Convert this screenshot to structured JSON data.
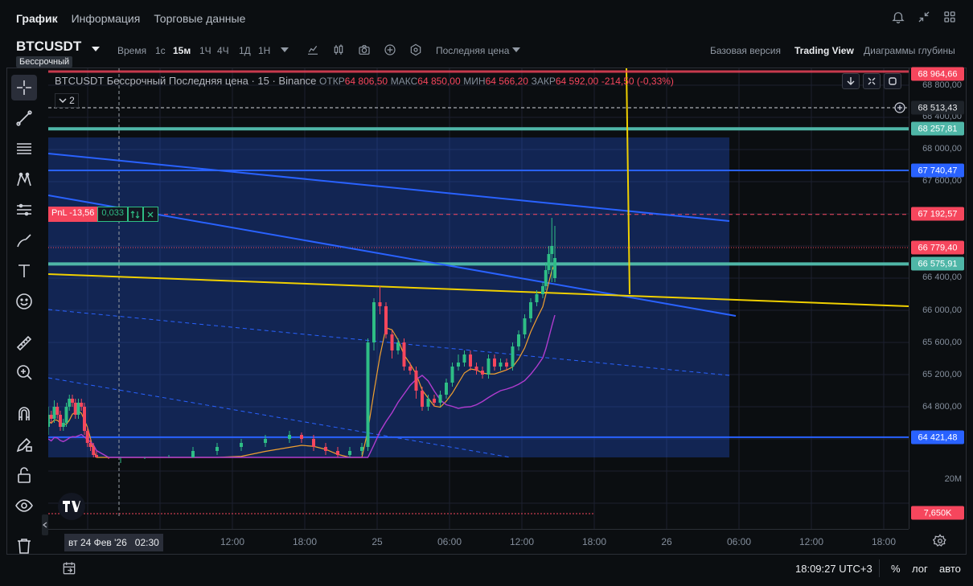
{
  "tabs": [
    {
      "label": "График",
      "active": true
    },
    {
      "label": "Информация",
      "active": false
    },
    {
      "label": "Торговые данные",
      "active": false
    }
  ],
  "top_icons": [
    "bell-icon",
    "collapse-icon",
    "grid-layout-icon"
  ],
  "symbol": {
    "name": "BTCUSDT",
    "subtitle": "Бессрочный"
  },
  "toolbar": {
    "time_label": "Время",
    "intervals": [
      {
        "label": "1с",
        "active": false
      },
      {
        "label": "15м",
        "active": true
      },
      {
        "label": "1Ч",
        "active": false
      },
      {
        "label": "4Ч",
        "active": false
      },
      {
        "label": "1Д",
        "active": false
      },
      {
        "label": "1Н",
        "active": false
      }
    ],
    "price_source": "Последняя цена",
    "modes": [
      {
        "label": "Базовая версия",
        "active": false
      },
      {
        "label": "Trading View",
        "active": true
      },
      {
        "label": "Диаграммы глубины",
        "active": false
      }
    ]
  },
  "legend": {
    "title": "BTCUSDT Бессрочный Последняя цена · 15 · Binance",
    "open_label": "ОТКР",
    "open": "64 806,50",
    "high_label": "МАКС",
    "high": "64 850,00",
    "low_label": "МИН",
    "low": "64 566,20",
    "close_label": "ЗАКР",
    "close": "64 592,00",
    "change": "-214,50 (-0,33%)",
    "collapse_count": "2"
  },
  "position": {
    "pnl": "PnL -13,56",
    "qty": "0,033"
  },
  "price_axis": {
    "ticks": [
      "68 800,00",
      "68 400,00",
      "68 000,00",
      "67 600,00",
      "66 400,00",
      "66 000,00",
      "65 600,00",
      "65 200,00",
      "64 800,00",
      "20M"
    ],
    "labels": [
      {
        "text": "68 964,66",
        "color": "#f6465d"
      },
      {
        "text": "68 513,43",
        "color": "#1e2329"
      },
      {
        "text": "68 257,81",
        "color": "#4fb6a7"
      },
      {
        "text": "67 740,47",
        "color": "#2962ff"
      },
      {
        "text": "67 192,57",
        "color": "#f6465d"
      },
      {
        "text": "66 779,40",
        "color": "#f6465d"
      },
      {
        "text": "66 575,91",
        "color": "#4fb6a7"
      },
      {
        "text": "64 421,48",
        "color": "#2962ff"
      },
      {
        "text": "7,650K",
        "color": "#f6465d"
      }
    ]
  },
  "time_axis": {
    "cursor_date": "вт 24 Фев '26",
    "cursor_time": "02:30",
    "ticks": [
      "12:00",
      "18:00",
      "25",
      "06:00",
      "12:00",
      "18:00",
      "26",
      "06:00",
      "12:00",
      "18:00"
    ]
  },
  "bottom": {
    "clock": "18:09:27 UTC+3",
    "percent": "%",
    "log": "лог",
    "auto": "авто"
  },
  "colors": {
    "bull": "#2ebd85",
    "bear": "#f6465d",
    "accent_blue": "#2962ff",
    "teal": "#4fb6a7",
    "yellow": "#f0d000",
    "purple": "#b03ccf"
  },
  "chart_data": {
    "type": "candlestick",
    "symbol": "BTCUSDT",
    "interval": "15",
    "ylim": [
      63800,
      69000
    ],
    "x": [
      "02-24 00:00",
      "02-24 00:15",
      "02-24 00:30",
      "02-24 00:45",
      "02-24 01:00",
      "02-24 01:15",
      "02-24 01:30",
      "02-24 01:45",
      "02-24 02:00",
      "02-24 02:15",
      "02-24 02:30",
      "02-24 02:45",
      "02-24 03:00",
      "02-24 03:15",
      "02-24 03:30",
      "02-24 03:45",
      "02-24 04:00",
      "02-24 05:00",
      "02-24 06:00",
      "02-24 08:00",
      "02-24 10:00",
      "02-24 12:00",
      "02-24 14:00",
      "02-24 16:00",
      "02-24 18:00",
      "02-24 20:00",
      "02-24 21:00",
      "02-24 22:00",
      "02-24 23:00",
      "02-25 00:00",
      "02-25 01:00",
      "02-25 02:00",
      "02-25 02:30",
      "02-25 03:00",
      "02-25 03:30",
      "02-25 04:00",
      "02-25 04:30",
      "02-25 05:00",
      "02-25 05:30",
      "02-25 06:00",
      "02-25 06:30",
      "02-25 07:00",
      "02-25 07:30",
      "02-25 08:00",
      "02-25 08:30",
      "02-25 09:00",
      "02-25 09:30",
      "02-25 10:00",
      "02-25 10:30",
      "02-25 11:00",
      "02-25 11:30",
      "02-25 12:00",
      "02-25 12:30",
      "02-25 13:00",
      "02-25 13:30",
      "02-25 14:00",
      "02-25 14:30",
      "02-25 15:00",
      "02-25 15:30",
      "02-25 16:00",
      "02-25 16:30",
      "02-25 17:00",
      "02-25 17:15",
      "02-25 17:30",
      "02-25 17:45",
      "02-25 18:00"
    ],
    "series": [
      {
        "name": "BTCUSDT",
        "open": [
          64550,
          64700,
          64650,
          64800,
          64700,
          64550,
          64600,
          64800,
          64900,
          64850,
          64700,
          64850,
          64800,
          64500,
          64350,
          64300,
          64200,
          64100,
          64000,
          64050,
          64100,
          64150,
          64250,
          64300,
          64350,
          64400,
          64450,
          64400,
          64300,
          64250,
          64200,
          64250,
          64300,
          65600,
          66100,
          66050,
          65700,
          65500,
          65600,
          65300,
          65250,
          65000,
          64800,
          64900,
          64850,
          64950,
          65100,
          65300,
          65350,
          65450,
          65300,
          65250,
          65200,
          65400,
          65300,
          65350,
          65300,
          65550,
          65700,
          65900,
          66100,
          66200,
          66300,
          66500,
          66700,
          66400
        ],
        "close": [
          64700,
          64650,
          64800,
          64700,
          64550,
          64600,
          64800,
          64900,
          64850,
          64700,
          64850,
          64800,
          64500,
          64350,
          64300,
          64200,
          64100,
          64000,
          64050,
          64100,
          64150,
          64250,
          64300,
          64350,
          64400,
          64450,
          64400,
          64300,
          64250,
          64200,
          64250,
          64300,
          65600,
          66100,
          66050,
          65700,
          65500,
          65600,
          65300,
          65250,
          65000,
          64800,
          64900,
          64850,
          64950,
          65100,
          65300,
          65350,
          65450,
          65300,
          65250,
          65200,
          65400,
          65300,
          65350,
          65300,
          65550,
          65700,
          65900,
          66100,
          66200,
          66300,
          66500,
          66700,
          66800,
          66650
        ],
        "high": [
          64800,
          64750,
          64880,
          64850,
          64750,
          64650,
          64850,
          64950,
          64950,
          64900,
          64900,
          64900,
          64850,
          64550,
          64400,
          64350,
          64250,
          64150,
          64100,
          64150,
          64200,
          64300,
          64350,
          64400,
          64450,
          64500,
          64480,
          64450,
          64350,
          64300,
          64300,
          64350,
          65650,
          66150,
          66300,
          66100,
          65750,
          65650,
          65650,
          65350,
          65300,
          65050,
          64950,
          64950,
          65000,
          65150,
          65350,
          65450,
          65500,
          65500,
          65350,
          65300,
          65450,
          65450,
          65400,
          65400,
          65600,
          65750,
          65950,
          66150,
          66250,
          66350,
          66600,
          66800,
          67150,
          67050
        ],
        "low": [
          64450,
          64600,
          64600,
          64650,
          64500,
          64500,
          64550,
          64750,
          64800,
          64650,
          64650,
          64750,
          64450,
          64300,
          64250,
          64150,
          64050,
          63950,
          63950,
          64000,
          64050,
          64100,
          64200,
          64250,
          64300,
          64350,
          64350,
          64250,
          64200,
          64150,
          64150,
          64200,
          64250,
          65500,
          65950,
          65650,
          65400,
          65450,
          65250,
          65200,
          64900,
          64750,
          64750,
          64800,
          64800,
          64900,
          65050,
          65250,
          65300,
          65250,
          65200,
          65150,
          65150,
          65250,
          65250,
          65250,
          65250,
          65500,
          65650,
          65850,
          66050,
          66150,
          66250,
          66450,
          66350,
          66350
        ]
      }
    ],
    "drawings": [
      {
        "type": "horizontal-line",
        "price": 68257.81,
        "color": "#4fb6a7"
      },
      {
        "type": "horizontal-line",
        "price": 67740.47,
        "color": "#2962ff"
      },
      {
        "type": "horizontal-line",
        "price": 66575.91,
        "color": "#4fb6a7"
      },
      {
        "type": "horizontal-line",
        "price": 64421.48,
        "color": "#2962ff"
      },
      {
        "type": "position-line",
        "price": 67192.57,
        "color": "#f6465d"
      },
      {
        "type": "last-price-line",
        "price": 66779.4,
        "color": "#f6465d"
      }
    ]
  }
}
